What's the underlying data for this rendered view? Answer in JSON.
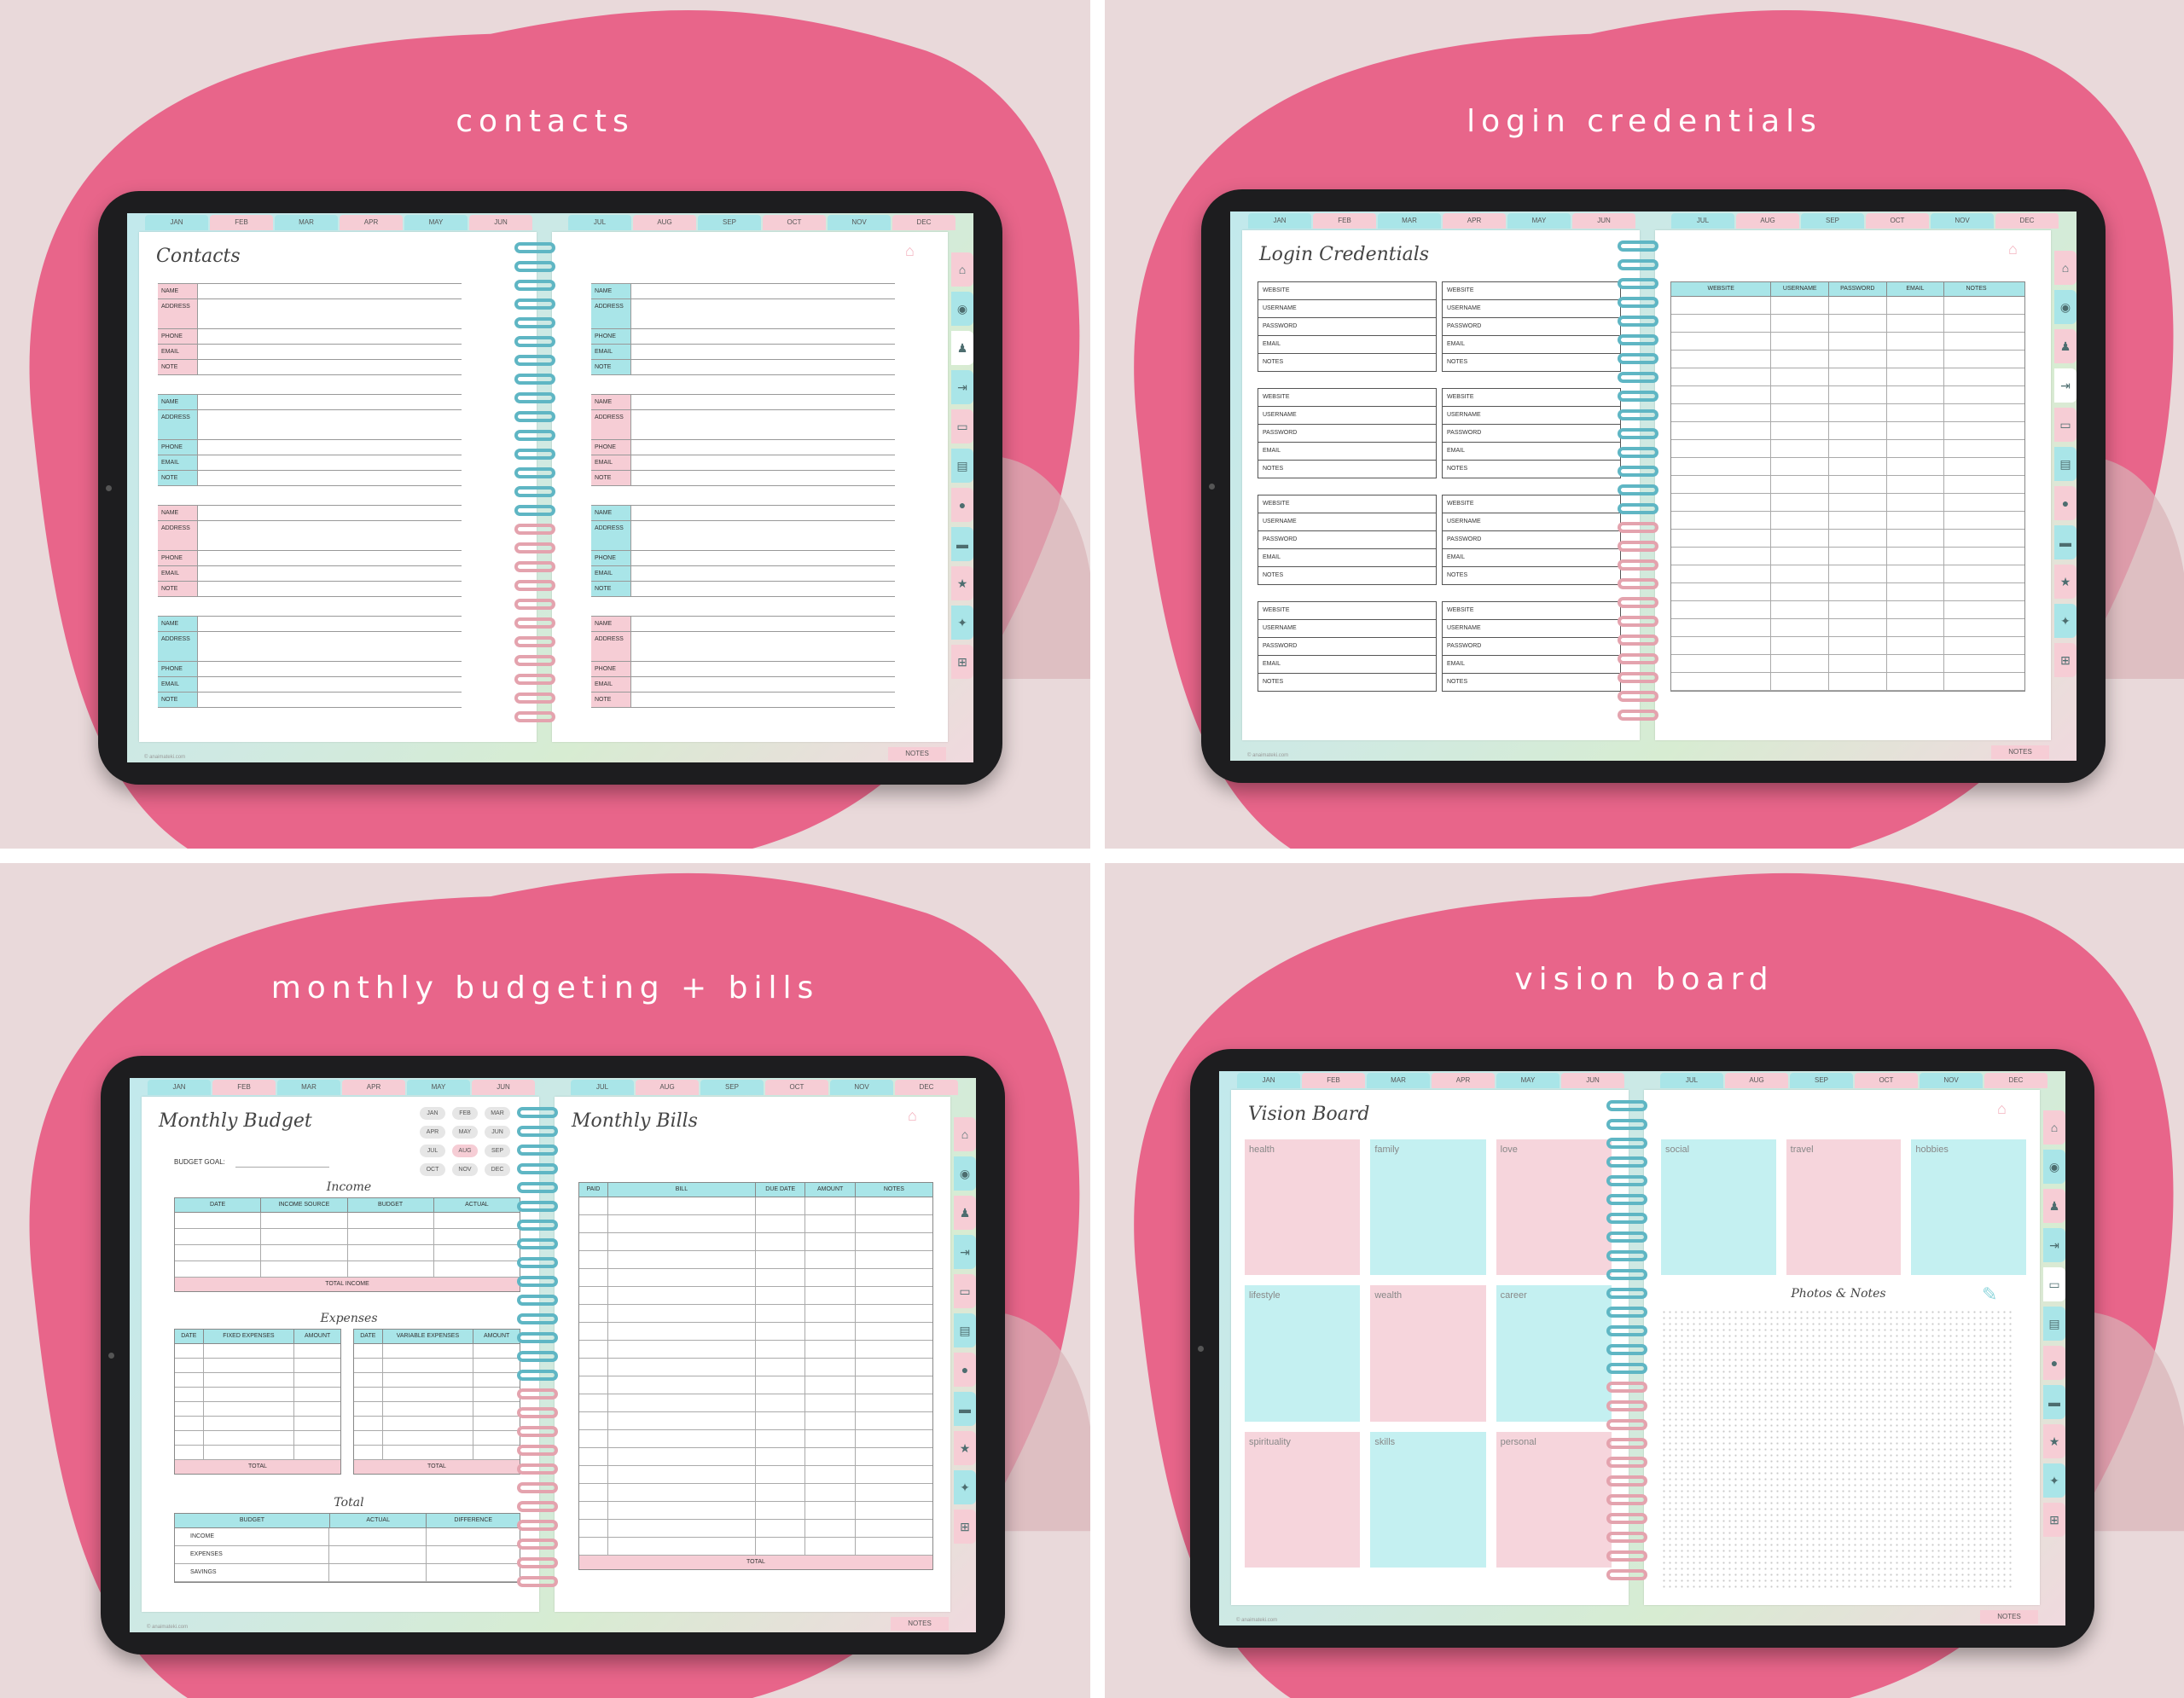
{
  "months": [
    "JAN",
    "FEB",
    "MAR",
    "APR",
    "MAY",
    "JUN",
    "JUL",
    "AUG",
    "SEP",
    "OCT",
    "NOV",
    "DEC"
  ],
  "notes_tab": "NOTES",
  "copyright": "© anaimateki.com",
  "side_icons": [
    "home-icon",
    "piggy-bank-icon",
    "people-icon",
    "login-icon",
    "monitor-icon",
    "document-icon",
    "apple-icon",
    "bed-icon",
    "star-icon",
    "runner-icon",
    "shopping-cart-icon"
  ],
  "colors": {
    "background": "#e9d9da",
    "blob": "#e8658a",
    "teal": "#a9e5e8",
    "pink": "#f6cdd5"
  },
  "panels": {
    "contacts": {
      "caption": "contacts",
      "title": "Contacts",
      "labels": {
        "name": "NAME",
        "address": "ADDRESS",
        "phone": "PHONE",
        "email": "EMAIL",
        "note": "NOTE"
      }
    },
    "login": {
      "caption": "login credentials",
      "title": "Login Credentials",
      "labels": {
        "website": "WEBSITE",
        "username": "USERNAME",
        "password": "PASSWORD",
        "email": "EMAIL",
        "notes": "NOTES"
      },
      "table_headers": [
        "WEBSITE",
        "USERNAME",
        "PASSWORD",
        "EMAIL",
        "NOTES"
      ]
    },
    "budget": {
      "caption": "monthly budgeting + bills",
      "title_left": "Monthly Budget",
      "title_right": "Monthly Bills",
      "budget_goal": "BUDGET GOAL:",
      "selected_month": "AUG",
      "income_head": "Income",
      "income_cols": [
        "DATE",
        "INCOME SOURCE",
        "BUDGET",
        "ACTUAL"
      ],
      "total_income": "TOTAL INCOME",
      "expenses_head": "Expenses",
      "fixed_cols": [
        "DATE",
        "FIXED EXPENSES",
        "AMOUNT"
      ],
      "variable_cols": [
        "DATE",
        "VARIABLE EXPENSES",
        "AMOUNT"
      ],
      "total": "TOTAL",
      "total_head": "Total",
      "summary_cols": [
        "BUDGET",
        "ACTUAL",
        "DIFFERENCE"
      ],
      "summary_rows": [
        "INCOME",
        "EXPENSES",
        "SAVINGS"
      ],
      "bill_cols": [
        "PAID",
        "BILL",
        "DUE DATE",
        "AMOUNT",
        "NOTES"
      ],
      "bill_total": "TOTAL"
    },
    "vision": {
      "caption": "vision board",
      "title": "Vision Board",
      "left_boxes": [
        "health",
        "family",
        "love",
        "lifestyle",
        "wealth",
        "career",
        "spirituality",
        "skills",
        "personal"
      ],
      "right_boxes": [
        "social",
        "travel",
        "hobbies"
      ],
      "photos_notes": "Photos & Notes"
    }
  }
}
